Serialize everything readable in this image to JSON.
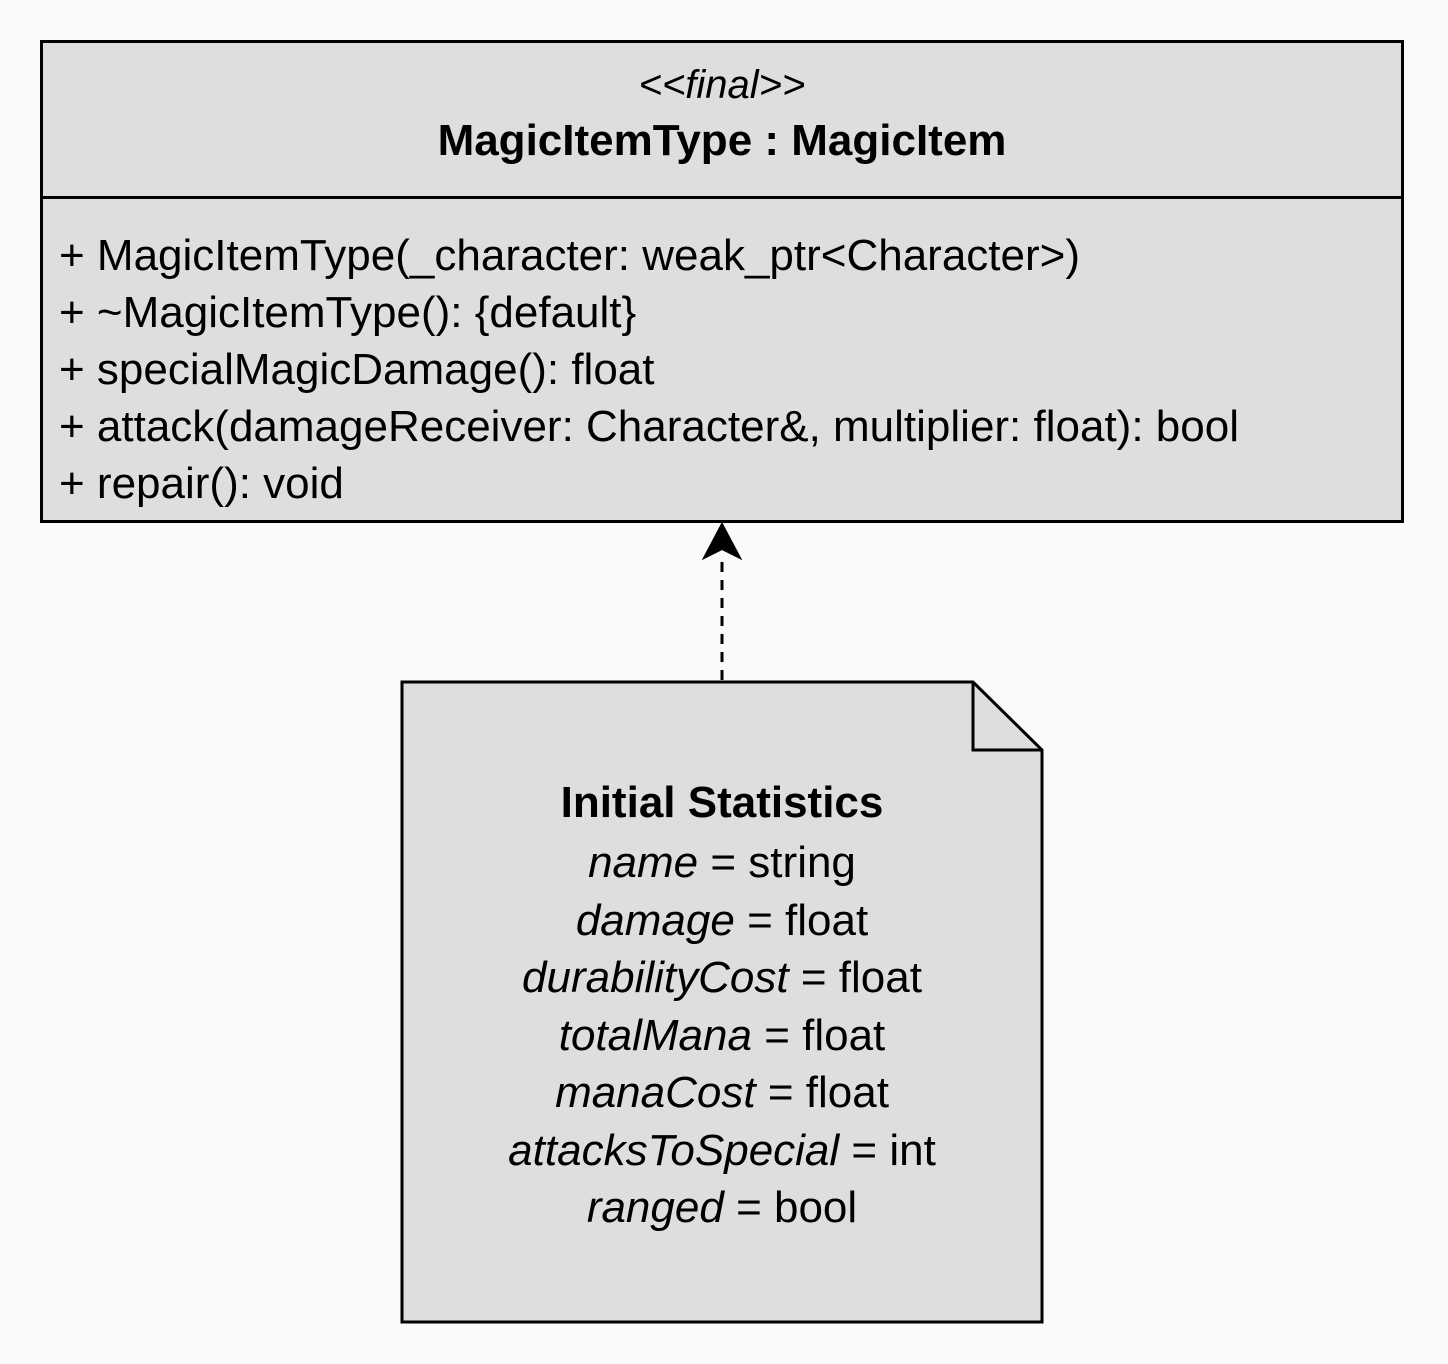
{
  "class_box": {
    "stereotype": "<<final>>",
    "name": "MagicItemType : MagicItem",
    "methods": [
      "+ MagicItemType(_character: weak_ptr<Character>)",
      "+ ~MagicItemType(): {default}",
      "+ specialMagicDamage(): float",
      "+ attack(damageReceiver: Character&, multiplier: float): bool",
      "+ repair(): void"
    ]
  },
  "note": {
    "title": "Initial Statistics",
    "attributes": [
      {
        "name": "name",
        "type": "= string"
      },
      {
        "name": "damage",
        "type": "= float"
      },
      {
        "name": "durabilityCost",
        "type": "= float"
      },
      {
        "name": "totalMana",
        "type": "= float"
      },
      {
        "name": "manaCost",
        "type": "= float"
      },
      {
        "name": "attacksToSpecial",
        "type": "= int"
      },
      {
        "name": "ranged",
        "type": "= bool"
      }
    ]
  },
  "connector": {
    "style": "dashed",
    "arrowhead": "filled"
  },
  "colors": {
    "background": "#fafafa",
    "box_fill": "#dedede",
    "stroke": "#000000"
  }
}
